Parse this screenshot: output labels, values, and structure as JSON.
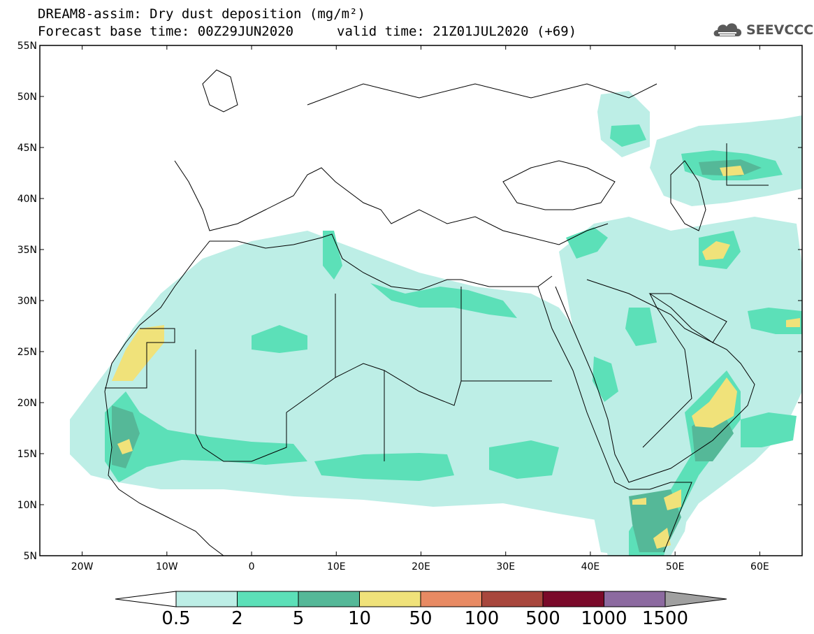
{
  "title": {
    "line1": "DREAM8-assim: Dry dust deposition (mg/m²)",
    "line2": "Forecast base time: 00Z29JUN2020",
    "valid": "valid time: 21Z01JUL2020 (+69)"
  },
  "logo": {
    "text": "SEEVCCC",
    "icon": "cloud-icon"
  },
  "map": {
    "lon_range": [
      -25,
      65
    ],
    "lat_range": [
      5,
      55
    ],
    "lat_ticks": [
      "5N",
      "10N",
      "15N",
      "20N",
      "25N",
      "30N",
      "35N",
      "40N",
      "45N",
      "50N",
      "55N"
    ],
    "lon_ticks": [
      "20W",
      "10W",
      "0",
      "10E",
      "20E",
      "30E",
      "40E",
      "50E",
      "60E"
    ]
  },
  "colorbar": {
    "labels": [
      "0.5",
      "2",
      "5",
      "10",
      "50",
      "100",
      "500",
      "1000",
      "1500"
    ],
    "colors": [
      "#bdeee6",
      "#5ce0b8",
      "#55b898",
      "#f0e27a",
      "#e88a63",
      "#a8473d",
      "#7a0a2a",
      "#8c6aa0"
    ],
    "below_color": "#ffffff",
    "above_color": "#a0a0a0"
  }
}
